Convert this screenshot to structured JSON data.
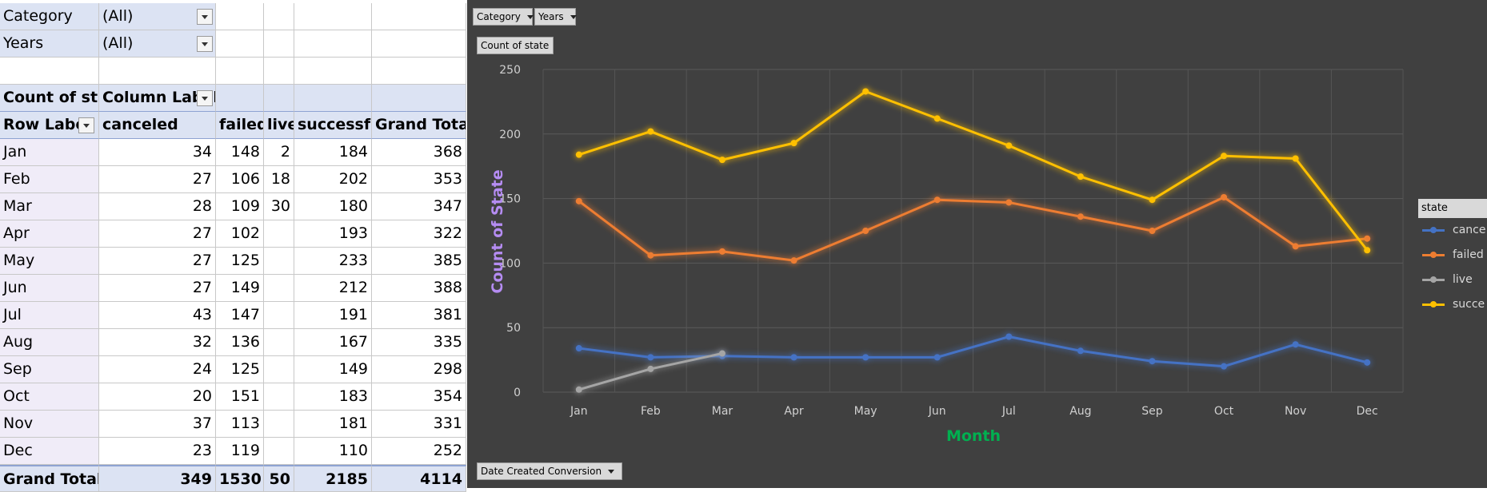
{
  "pivot": {
    "filters": [
      {
        "label": "Category",
        "value": "(All)"
      },
      {
        "label": "Years",
        "value": "(All)"
      }
    ],
    "corner_label": "Count of sta",
    "column_labels": "Column Label",
    "row_labels": "Row Label",
    "columns": [
      "canceled",
      "failed",
      "live",
      "successful",
      "Grand Total"
    ],
    "rows": [
      {
        "month": "Jan",
        "canceled": "34",
        "failed": "148",
        "live": "2",
        "successful": "184",
        "total": "368"
      },
      {
        "month": "Feb",
        "canceled": "27",
        "failed": "106",
        "live": "18",
        "successful": "202",
        "total": "353"
      },
      {
        "month": "Mar",
        "canceled": "28",
        "failed": "109",
        "live": "30",
        "successful": "180",
        "total": "347"
      },
      {
        "month": "Apr",
        "canceled": "27",
        "failed": "102",
        "live": "",
        "successful": "193",
        "total": "322"
      },
      {
        "month": "May",
        "canceled": "27",
        "failed": "125",
        "live": "",
        "successful": "233",
        "total": "385"
      },
      {
        "month": "Jun",
        "canceled": "27",
        "failed": "149",
        "live": "",
        "successful": "212",
        "total": "388"
      },
      {
        "month": "Jul",
        "canceled": "43",
        "failed": "147",
        "live": "",
        "successful": "191",
        "total": "381"
      },
      {
        "month": "Aug",
        "canceled": "32",
        "failed": "136",
        "live": "",
        "successful": "167",
        "total": "335"
      },
      {
        "month": "Sep",
        "canceled": "24",
        "failed": "125",
        "live": "",
        "successful": "149",
        "total": "298"
      },
      {
        "month": "Oct",
        "canceled": "20",
        "failed": "151",
        "live": "",
        "successful": "183",
        "total": "354"
      },
      {
        "month": "Nov",
        "canceled": "37",
        "failed": "113",
        "live": "",
        "successful": "181",
        "total": "331"
      },
      {
        "month": "Dec",
        "canceled": "23",
        "failed": "119",
        "live": "",
        "successful": "110",
        "total": "252"
      }
    ],
    "grand_total": {
      "label": "Grand Total",
      "canceled": "349",
      "failed": "1530",
      "live": "50",
      "successful": "2185",
      "total": "4114"
    }
  },
  "chart_panel": {
    "filter_buttons": [
      "Category",
      "Years"
    ],
    "value_button": "Count of state",
    "axis_button": "Date Created Conversion",
    "legend_title": "state",
    "legend_items": [
      "cance",
      "failed",
      "live",
      "succe"
    ]
  },
  "chart_data": {
    "type": "line",
    "categories": [
      "Jan",
      "Feb",
      "Mar",
      "Apr",
      "May",
      "Jun",
      "Jul",
      "Aug",
      "Sep",
      "Oct",
      "Nov",
      "Dec"
    ],
    "series": [
      {
        "name": "canceled",
        "color": "#4472c4",
        "values": [
          34,
          27,
          28,
          27,
          27,
          27,
          43,
          32,
          24,
          20,
          37,
          23
        ]
      },
      {
        "name": "failed",
        "color": "#ed7d31",
        "values": [
          148,
          106,
          109,
          102,
          125,
          149,
          147,
          136,
          125,
          151,
          113,
          119
        ]
      },
      {
        "name": "live",
        "color": "#a5a5a5",
        "values": [
          2,
          18,
          30,
          null,
          null,
          null,
          null,
          null,
          null,
          null,
          null,
          null
        ]
      },
      {
        "name": "successful",
        "color": "#ffc000",
        "values": [
          184,
          202,
          180,
          193,
          233,
          212,
          191,
          167,
          149,
          183,
          181,
          110
        ]
      }
    ],
    "xlabel": "Month",
    "ylabel": "Count of State",
    "ylim": [
      0,
      250
    ],
    "yticks": [
      "0",
      "50",
      "100",
      "150",
      "200",
      "250"
    ],
    "grid": true,
    "legend_position": "right",
    "xlabel_color": "#00b050",
    "ylabel_color": "#b58cf2",
    "background": "#404040"
  }
}
